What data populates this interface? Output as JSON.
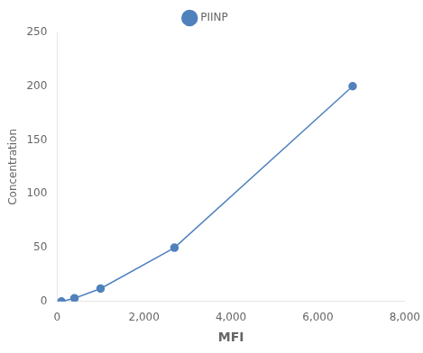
{
  "chart_data": {
    "type": "line",
    "x": [
      100,
      400,
      1000,
      2700,
      6800
    ],
    "series": [
      {
        "name": "PIINP",
        "color": "#4F81BD",
        "values": [
          0,
          3,
          12,
          50,
          200
        ],
        "marker": "circle"
      }
    ],
    "xlabel": "MFI",
    "ylabel": "Concentration",
    "xlim": [
      0,
      8000
    ],
    "ylim": [
      0,
      250
    ],
    "xticks": [
      0,
      2000,
      4000,
      6000,
      8000
    ],
    "yticks": [
      0,
      50,
      100,
      150,
      200,
      250
    ],
    "grid": false,
    "legend": "top"
  }
}
